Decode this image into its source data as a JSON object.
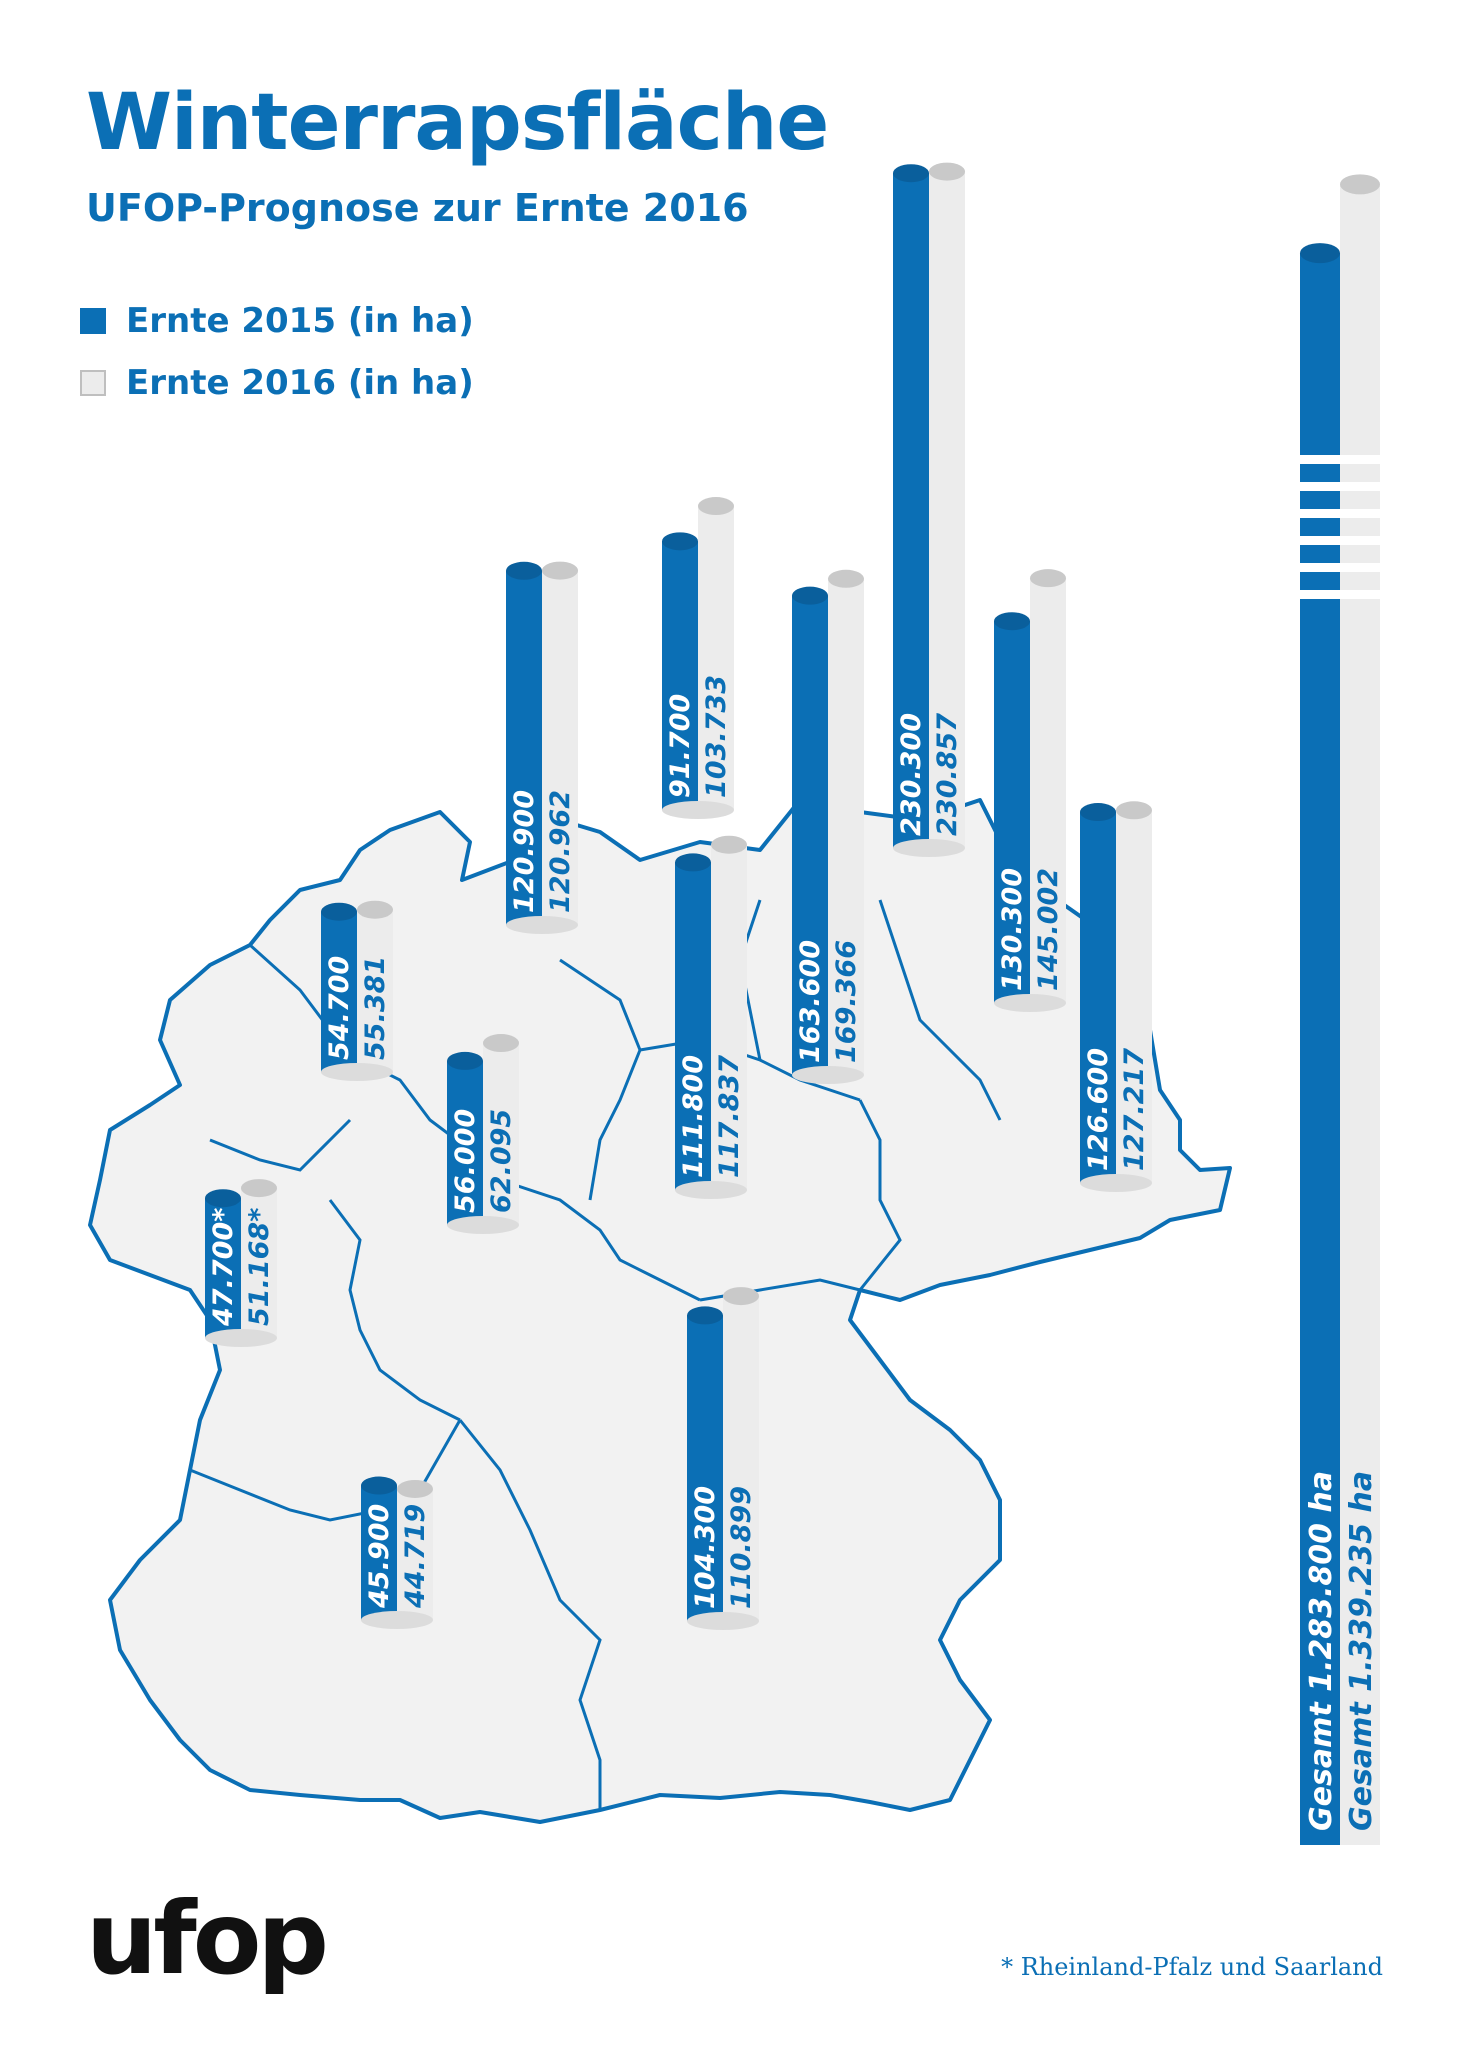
{
  "colors": {
    "ernte_2015": "#0b6fb5",
    "ernte_2016": "#ececec",
    "cap_2016": "#c9c9c9",
    "map_fill": "#f2f2f2",
    "map_stroke": "#0b6fb5"
  },
  "title": "Winterrapsfläche",
  "subtitle": "UFOP-Prognose zur Ernte 2016",
  "legend": [
    {
      "label": "Ernte 2015 (in ha)",
      "series": "ernte_2015"
    },
    {
      "label": "Ernte 2016 (in ha)",
      "series": "ernte_2016"
    }
  ],
  "footnote": "* Rheinland-Pfalz und Saarland",
  "logo": "ufop",
  "chart_data": {
    "type": "bar",
    "series": [
      {
        "name": "Ernte 2015 (in ha)",
        "values": [
          120900,
          91700,
          230300,
          54700,
          111800,
          163600,
          130300,
          126600,
          56000,
          47700,
          104300,
          45900
        ]
      },
      {
        "name": "Ernte 2016 (in ha)",
        "values": [
          120962,
          103733,
          230857,
          55381,
          117837,
          169366,
          145002,
          127217,
          62095,
          51168,
          110899,
          44719
        ]
      }
    ],
    "labels_2015": [
      "120.900",
      "91.700",
      "230.300",
      "54.700",
      "111.800",
      "163.600",
      "130.300",
      "126.600",
      "56.000",
      "47.700*",
      "104.300",
      "45.900"
    ],
    "labels_2016": [
      "120.962",
      "103.733",
      "230.857",
      "55.381",
      "117.837",
      "169.366",
      "145.002",
      "127.217",
      "62.095",
      "51.168*",
      "110.899",
      "44.719"
    ],
    "total": {
      "values": [
        1283800,
        1339235
      ],
      "labels": [
        "Gesamt 1.283.800 ha",
        "Gesamt 1.339.235 ha"
      ]
    }
  }
}
